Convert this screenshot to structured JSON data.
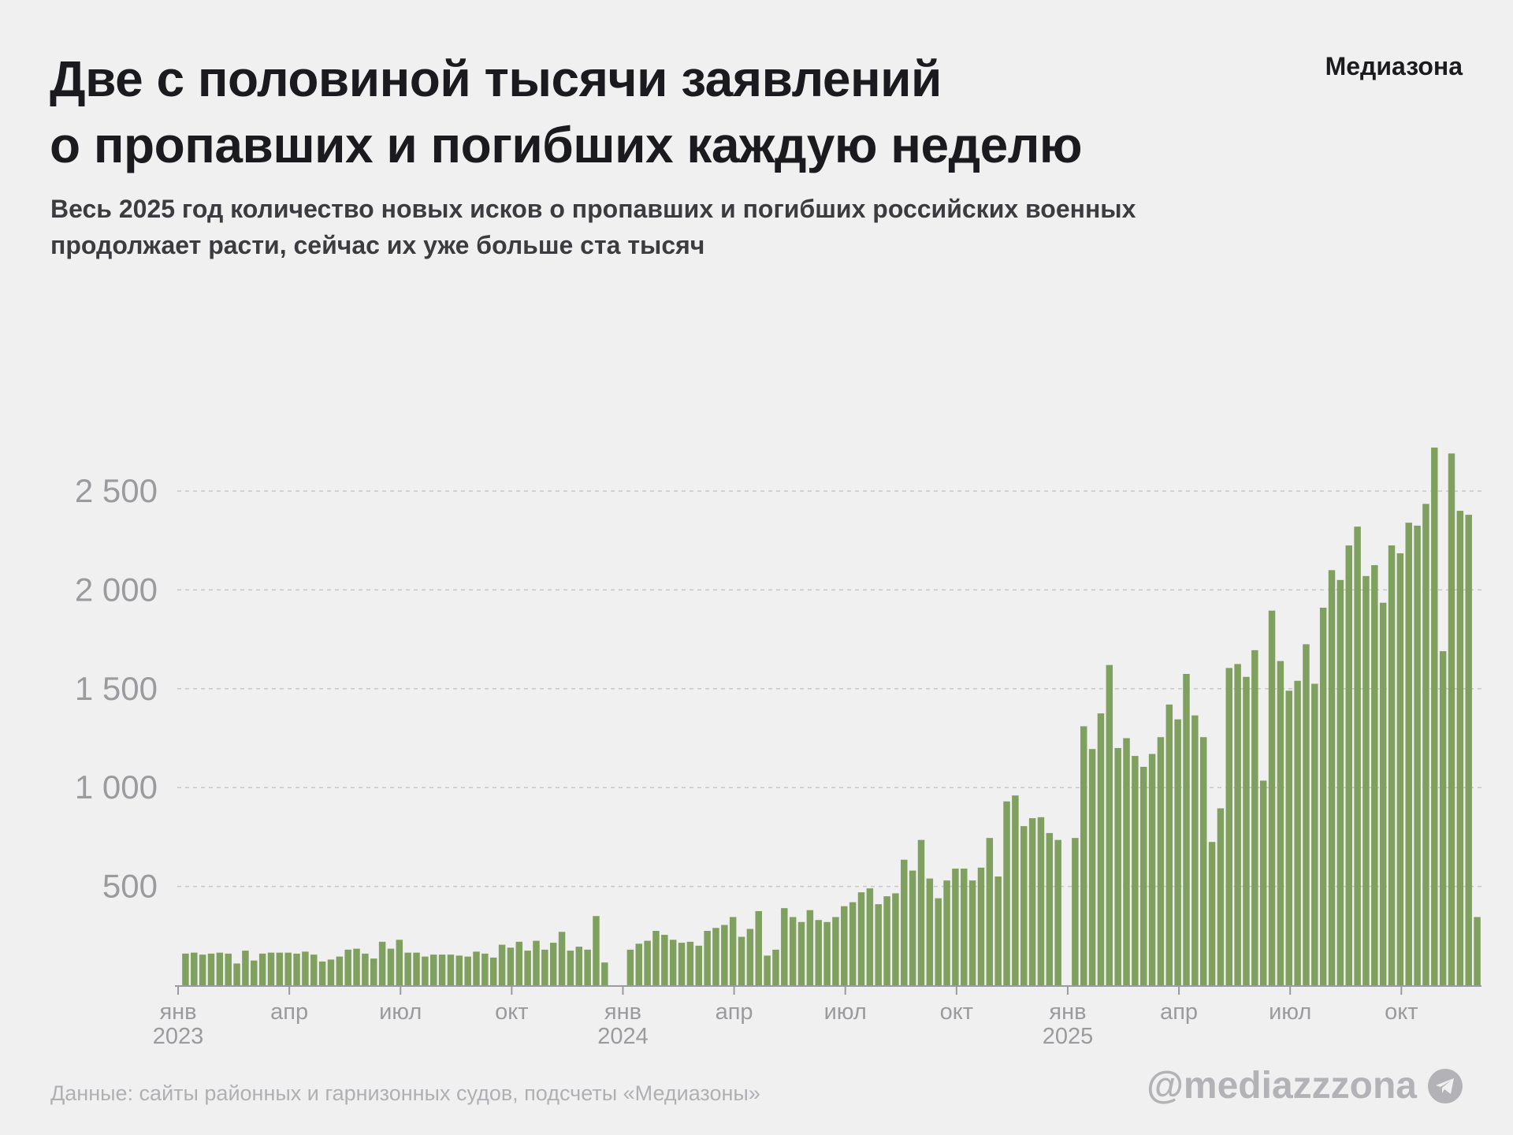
{
  "title": {
    "line1": "Две с половиной тысячи заявлений",
    "line2": "о пропавших и погибших каждую неделю"
  },
  "brand": "Медиазона",
  "subtitle": {
    "line1": "Весь 2025 год количество новых исков о пропавших и погибших российских военных",
    "line2": "продолжает расти, сейчас их уже больше ста тысяч"
  },
  "footer": {
    "source": "Данные: сайты районных и гарнизонных судов, подсчеты «Медиазоны»",
    "handle": "@mediazzzona",
    "handle_icon": "telegram-icon"
  },
  "colors": {
    "bar": "#7fa05e",
    "grid": "#c8c8c8",
    "axis_text": "#9b9b9f"
  },
  "chart_data": {
    "type": "bar",
    "ylim": [
      0,
      2750
    ],
    "yticks": [
      {
        "value": 500,
        "label": "500"
      },
      {
        "value": 1000,
        "label": "1 000"
      },
      {
        "value": 1500,
        "label": "1 500"
      },
      {
        "value": 2000,
        "label": "2 000"
      },
      {
        "value": 2500,
        "label": "2 500"
      }
    ],
    "grid": "horizontal-dashed",
    "xticks": [
      {
        "week": 0,
        "label": "янв",
        "year": "2023"
      },
      {
        "week": 13,
        "label": "апр"
      },
      {
        "week": 26,
        "label": "июл"
      },
      {
        "week": 39,
        "label": "окт"
      },
      {
        "week": 52,
        "label": "янв",
        "year": "2024"
      },
      {
        "week": 65,
        "label": "апр"
      },
      {
        "week": 78,
        "label": "июл"
      },
      {
        "week": 91,
        "label": "окт"
      },
      {
        "week": 104,
        "label": "янв",
        "year": "2025"
      },
      {
        "week": 117,
        "label": "апр"
      },
      {
        "week": 130,
        "label": "июл"
      },
      {
        "week": 143,
        "label": "окт"
      }
    ],
    "weeks_total": 152,
    "values": [
      160,
      165,
      155,
      160,
      165,
      160,
      110,
      175,
      125,
      160,
      165,
      165,
      165,
      160,
      170,
      155,
      120,
      130,
      145,
      180,
      185,
      160,
      135,
      220,
      185,
      230,
      165,
      165,
      145,
      155,
      155,
      155,
      150,
      145,
      170,
      160,
      140,
      205,
      190,
      220,
      175,
      225,
      180,
      215,
      270,
      175,
      195,
      180,
      350,
      115,
      0,
      0,
      180,
      210,
      225,
      275,
      255,
      230,
      215,
      220,
      200,
      275,
      290,
      305,
      345,
      245,
      285,
      375,
      150,
      180,
      390,
      345,
      320,
      380,
      330,
      320,
      345,
      400,
      420,
      470,
      490,
      410,
      450,
      465,
      635,
      580,
      735,
      540,
      440,
      530,
      590,
      590,
      530,
      595,
      745,
      550,
      930,
      960,
      805,
      845,
      850,
      770,
      735,
      0,
      745,
      1310,
      1195,
      1375,
      1620,
      1200,
      1250,
      1160,
      1105,
      1170,
      1255,
      1420,
      1345,
      1575,
      1365,
      1255,
      725,
      895,
      1605,
      1625,
      1560,
      1695,
      1035,
      1895,
      1640,
      1490,
      1540,
      1725,
      1525,
      1910,
      2100,
      2050,
      2225,
      2320,
      2070,
      2125,
      1935,
      2225,
      2185,
      2340,
      2325,
      2435,
      2720,
      1690,
      2690,
      2400,
      2380,
      345
    ]
  }
}
